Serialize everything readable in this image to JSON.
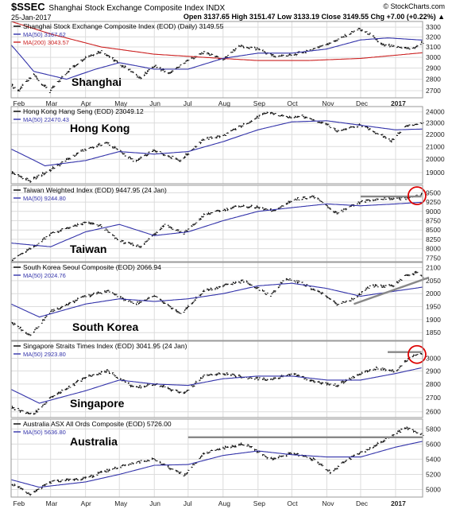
{
  "header": {
    "symbol": "$SSEC",
    "symbol_title": "Shanghai Stock Exchange Composite Index  INDX",
    "site": "© StockCharts.com",
    "date": "25-Jan-2017",
    "quote": "Open 3137.65  High 3151.47  Low 3133.19  Close 3149.55  Chg +7.00 (+0.22%) ▲"
  },
  "colors": {
    "price": "#000000",
    "ma50": "#3333aa",
    "ma200": "#cc2222",
    "resistance": "#888888",
    "highlight_circle": "#dd0000",
    "grid": "#dcdcdc",
    "panel_border": "#9a9a9a"
  },
  "x_axis": {
    "tick_labels": [
      "Feb",
      "Mar",
      "Apr",
      "May",
      "Jun",
      "Jul",
      "Aug",
      "Sep",
      "Oct",
      "Nov",
      "Dec",
      "2017"
    ],
    "tick_dates": [
      "2016-02-01",
      "2016-03-01",
      "2016-04-01",
      "2016-05-01",
      "2016-06-01",
      "2016-07-01",
      "2016-08-01",
      "2016-09-01",
      "2016-10-01",
      "2016-11-01",
      "2016-12-01",
      "2017-01-01"
    ],
    "start_date": "2016-01-26",
    "end_date": "2017-01-25"
  },
  "chart_data": [
    {
      "type": "line",
      "name": "Shanghai",
      "legend": [
        "Shanghai Stock Exchange Composite Index (EOD) (Daily) 3149.55",
        "MA(50) 3167.62",
        "MA(200) 3043.57"
      ],
      "ylim": [
        2640,
        3360
      ],
      "yticks": [
        2700,
        2800,
        2900,
        3000,
        3100,
        3200,
        3300
      ],
      "log": true,
      "price": [
        [
          "2016-01-26",
          2750
        ],
        [
          "2016-02-01",
          2700
        ],
        [
          "2016-02-15",
          2840
        ],
        [
          "2016-02-29",
          2690
        ],
        [
          "2016-03-15",
          2860
        ],
        [
          "2016-04-01",
          3000
        ],
        [
          "2016-04-15",
          3060
        ],
        [
          "2016-05-01",
          2940
        ],
        [
          "2016-05-20",
          2810
        ],
        [
          "2016-06-01",
          2920
        ],
        [
          "2016-06-15",
          2850
        ],
        [
          "2016-07-01",
          2970
        ],
        [
          "2016-07-15",
          3050
        ],
        [
          "2016-08-01",
          2980
        ],
        [
          "2016-08-15",
          3110
        ],
        [
          "2016-09-01",
          3080
        ],
        [
          "2016-09-15",
          3010
        ],
        [
          "2016-10-01",
          3020
        ],
        [
          "2016-10-20",
          3080
        ],
        [
          "2016-11-10",
          3170
        ],
        [
          "2016-11-29",
          3280
        ],
        [
          "2016-12-10",
          3220
        ],
        [
          "2016-12-20",
          3120
        ],
        [
          "2017-01-01",
          3100
        ],
        [
          "2017-01-16",
          3080
        ],
        [
          "2017-01-25",
          3150
        ]
      ],
      "ma50": [
        [
          "2016-01-26",
          3120
        ],
        [
          "2016-02-15",
          2870
        ],
        [
          "2016-03-15",
          2800
        ],
        [
          "2016-04-10",
          2890
        ],
        [
          "2016-05-01",
          2950
        ],
        [
          "2016-06-01",
          2890
        ],
        [
          "2016-07-01",
          2890
        ],
        [
          "2016-08-01",
          2990
        ],
        [
          "2016-09-01",
          3040
        ],
        [
          "2016-10-01",
          3040
        ],
        [
          "2016-11-01",
          3080
        ],
        [
          "2016-12-01",
          3170
        ],
        [
          "2016-12-25",
          3190
        ],
        [
          "2017-01-25",
          3168
        ]
      ],
      "ma200": [
        [
          "2016-01-26",
          3360
        ],
        [
          "2016-03-01",
          3230
        ],
        [
          "2016-04-15",
          3100
        ],
        [
          "2016-06-01",
          3030
        ],
        [
          "2016-07-15",
          3000
        ],
        [
          "2016-09-01",
          2970
        ],
        [
          "2016-10-15",
          2970
        ],
        [
          "2016-12-01",
          2990
        ],
        [
          "2017-01-25",
          3044
        ]
      ],
      "annotation": "Shanghai"
    },
    {
      "type": "line",
      "name": "Hong Kong",
      "legend": [
        "Hong Kong Hang Seng (EOD) 23049.12",
        "MA(50) 22470.43"
      ],
      "ylim": [
        18200,
        24500
      ],
      "yticks": [
        19000,
        20000,
        21000,
        22000,
        23000,
        24000
      ],
      "log": true,
      "price": [
        [
          "2016-01-26",
          19000
        ],
        [
          "2016-02-12",
          18400
        ],
        [
          "2016-03-01",
          19200
        ],
        [
          "2016-04-01",
          20800
        ],
        [
          "2016-04-20",
          21300
        ],
        [
          "2016-05-15",
          19800
        ],
        [
          "2016-06-01",
          20700
        ],
        [
          "2016-06-24",
          19900
        ],
        [
          "2016-07-15",
          21600
        ],
        [
          "2016-08-01",
          21900
        ],
        [
          "2016-08-20",
          22900
        ],
        [
          "2016-09-10",
          24000
        ],
        [
          "2016-09-25",
          23500
        ],
        [
          "2016-10-10",
          23600
        ],
        [
          "2016-10-31",
          22900
        ],
        [
          "2016-11-10",
          22300
        ],
        [
          "2016-12-01",
          22800
        ],
        [
          "2016-12-28",
          21500
        ],
        [
          "2017-01-10",
          22700
        ],
        [
          "2017-01-25",
          23049
        ]
      ],
      "ma50": [
        [
          "2016-01-26",
          20800
        ],
        [
          "2016-02-25",
          19500
        ],
        [
          "2016-04-01",
          19900
        ],
        [
          "2016-05-01",
          20600
        ],
        [
          "2016-06-01",
          20400
        ],
        [
          "2016-07-01",
          20600
        ],
        [
          "2016-08-01",
          21400
        ],
        [
          "2016-09-01",
          22400
        ],
        [
          "2016-10-01",
          23100
        ],
        [
          "2016-11-01",
          23200
        ],
        [
          "2016-12-01",
          22800
        ],
        [
          "2017-01-01",
          22400
        ],
        [
          "2017-01-25",
          22470
        ]
      ],
      "annotation": "Hong Kong"
    },
    {
      "type": "line",
      "name": "Taiwan",
      "legend": [
        "Taiwan Weighted Index (EOD) 9447.95 (24 Jan)",
        "MA(50) 9244.80"
      ],
      "ylim": [
        7650,
        9700
      ],
      "yticks": [
        7750,
        8000,
        8250,
        8500,
        8750,
        9000,
        9250,
        9500
      ],
      "log": false,
      "price": [
        [
          "2016-01-26",
          7700
        ],
        [
          "2016-02-15",
          8050
        ],
        [
          "2016-03-01",
          8400
        ],
        [
          "2016-04-01",
          8700
        ],
        [
          "2016-04-15",
          8600
        ],
        [
          "2016-05-01",
          8200
        ],
        [
          "2016-05-20",
          8050
        ],
        [
          "2016-06-10",
          8650
        ],
        [
          "2016-06-27",
          8400
        ],
        [
          "2016-07-15",
          8900
        ],
        [
          "2016-08-15",
          9150
        ],
        [
          "2016-09-01",
          9100
        ],
        [
          "2016-09-15",
          9000
        ],
        [
          "2016-10-01",
          9300
        ],
        [
          "2016-10-20",
          9400
        ],
        [
          "2016-11-10",
          8950
        ],
        [
          "2016-12-01",
          9250
        ],
        [
          "2016-12-20",
          9350
        ],
        [
          "2017-01-10",
          9350
        ],
        [
          "2017-01-24",
          9448
        ]
      ],
      "ma50": [
        [
          "2016-01-26",
          8150
        ],
        [
          "2016-03-01",
          8050
        ],
        [
          "2016-04-01",
          8450
        ],
        [
          "2016-05-01",
          8650
        ],
        [
          "2016-06-01",
          8350
        ],
        [
          "2016-07-01",
          8450
        ],
        [
          "2016-08-01",
          8750
        ],
        [
          "2016-09-01",
          9000
        ],
        [
          "2016-10-01",
          9100
        ],
        [
          "2016-11-01",
          9200
        ],
        [
          "2016-12-01",
          9150
        ],
        [
          "2017-01-01",
          9200
        ],
        [
          "2017-01-24",
          9245
        ]
      ],
      "resistance": [
        [
          "2016-12-01",
          9400
        ],
        [
          "2017-01-24",
          9400
        ]
      ],
      "highlight": [
        "2017-01-20",
        9420
      ],
      "annotation": "Taiwan"
    },
    {
      "type": "line",
      "name": "South Korea",
      "legend": [
        "South Korea Seoul Composite (EOD) 2066.94",
        "MA(50) 2024.76"
      ],
      "ylim": [
        1820,
        2120
      ],
      "yticks": [
        1850,
        1900,
        1950,
        2000,
        2050,
        2100
      ],
      "log": false,
      "price": [
        [
          "2016-01-26",
          1890
        ],
        [
          "2016-02-12",
          1840
        ],
        [
          "2016-03-01",
          1930
        ],
        [
          "2016-04-01",
          1990
        ],
        [
          "2016-04-20",
          2010
        ],
        [
          "2016-05-15",
          1960
        ],
        [
          "2016-06-01",
          1990
        ],
        [
          "2016-06-24",
          1920
        ],
        [
          "2016-07-15",
          2010
        ],
        [
          "2016-08-01",
          2030
        ],
        [
          "2016-08-20",
          2050
        ],
        [
          "2016-09-12",
          1990
        ],
        [
          "2016-09-25",
          2060
        ],
        [
          "2016-10-10",
          2040
        ],
        [
          "2016-11-01",
          1990
        ],
        [
          "2016-11-10",
          1960
        ],
        [
          "2016-11-25",
          1980
        ],
        [
          "2016-12-10",
          2030
        ],
        [
          "2016-12-30",
          2030
        ],
        [
          "2017-01-10",
          2070
        ],
        [
          "2017-01-20",
          2080
        ],
        [
          "2017-01-25",
          2067
        ]
      ],
      "ma50": [
        [
          "2016-01-26",
          1960
        ],
        [
          "2016-02-20",
          1910
        ],
        [
          "2016-04-01",
          1960
        ],
        [
          "2016-05-01",
          1980
        ],
        [
          "2016-06-01",
          1970
        ],
        [
          "2016-07-01",
          1980
        ],
        [
          "2016-08-01",
          2000
        ],
        [
          "2016-09-01",
          2030
        ],
        [
          "2016-10-01",
          2040
        ],
        [
          "2016-11-01",
          2020
        ],
        [
          "2016-12-01",
          1990
        ],
        [
          "2017-01-01",
          2010
        ],
        [
          "2017-01-25",
          2025
        ]
      ],
      "trendline": [
        [
          "2016-11-25",
          1960
        ],
        [
          "2017-01-25",
          2050
        ]
      ],
      "annotation": "South Korea"
    },
    {
      "type": "line",
      "name": "Singapore",
      "legend": [
        "Singapore Straits Times Index (EOD) 3041.95 (24 Jan)",
        "MA(50) 2923.80"
      ],
      "ylim": [
        2560,
        3140
      ],
      "yticks": [
        2600,
        2700,
        2800,
        2900,
        3000
      ],
      "log": true,
      "price": [
        [
          "2016-01-26",
          2630
        ],
        [
          "2016-02-15",
          2580
        ],
        [
          "2016-03-01",
          2700
        ],
        [
          "2016-04-01",
          2850
        ],
        [
          "2016-04-20",
          2900
        ],
        [
          "2016-05-15",
          2770
        ],
        [
          "2016-06-01",
          2800
        ],
        [
          "2016-06-27",
          2730
        ],
        [
          "2016-07-15",
          2860
        ],
        [
          "2016-08-01",
          2880
        ],
        [
          "2016-08-20",
          2850
        ],
        [
          "2016-09-12",
          2830
        ],
        [
          "2016-10-01",
          2880
        ],
        [
          "2016-10-20",
          2820
        ],
        [
          "2016-11-10",
          2790
        ],
        [
          "2016-12-01",
          2880
        ],
        [
          "2016-12-15",
          2920
        ],
        [
          "2017-01-01",
          2900
        ],
        [
          "2017-01-15",
          3020
        ],
        [
          "2017-01-24",
          3042
        ]
      ],
      "ma50": [
        [
          "2016-01-26",
          2760
        ],
        [
          "2016-02-20",
          2660
        ],
        [
          "2016-04-01",
          2750
        ],
        [
          "2016-05-01",
          2830
        ],
        [
          "2016-06-01",
          2800
        ],
        [
          "2016-07-01",
          2790
        ],
        [
          "2016-08-01",
          2840
        ],
        [
          "2016-09-01",
          2860
        ],
        [
          "2016-10-01",
          2860
        ],
        [
          "2016-11-01",
          2830
        ],
        [
          "2016-12-01",
          2830
        ],
        [
          "2017-01-01",
          2880
        ],
        [
          "2017-01-24",
          2924
        ]
      ],
      "resistance": [
        [
          "2016-12-25",
          3050
        ],
        [
          "2017-01-24",
          3050
        ]
      ],
      "highlight": [
        "2017-01-20",
        3030
      ],
      "annotation": "Singapore"
    },
    {
      "type": "line",
      "name": "Australia",
      "legend": [
        "Australia ASX All Ords Composite (EOD) 5726.00",
        "MA(50) 5636.80"
      ],
      "ylim": [
        4900,
        5930
      ],
      "yticks": [
        5000,
        5200,
        5400,
        5600,
        5800
      ],
      "log": false,
      "price": [
        [
          "2016-01-26",
          5080
        ],
        [
          "2016-02-12",
          4930
        ],
        [
          "2016-03-01",
          5100
        ],
        [
          "2016-04-01",
          5150
        ],
        [
          "2016-04-20",
          5250
        ],
        [
          "2016-05-15",
          5360
        ],
        [
          "2016-06-01",
          5400
        ],
        [
          "2016-06-27",
          5180
        ],
        [
          "2016-07-15",
          5480
        ],
        [
          "2016-08-01",
          5550
        ],
        [
          "2016-08-20",
          5600
        ],
        [
          "2016-09-12",
          5400
        ],
        [
          "2016-10-01",
          5480
        ],
        [
          "2016-10-20",
          5400
        ],
        [
          "2016-11-04",
          5230
        ],
        [
          "2016-11-20",
          5400
        ],
        [
          "2016-12-10",
          5550
        ],
        [
          "2017-01-01",
          5740
        ],
        [
          "2017-01-10",
          5820
        ],
        [
          "2017-01-25",
          5726
        ]
      ],
      "ma50": [
        [
          "2016-01-26",
          5130
        ],
        [
          "2016-02-20",
          5030
        ],
        [
          "2016-04-01",
          5100
        ],
        [
          "2016-05-01",
          5200
        ],
        [
          "2016-06-01",
          5320
        ],
        [
          "2016-07-01",
          5330
        ],
        [
          "2016-08-01",
          5450
        ],
        [
          "2016-09-01",
          5510
        ],
        [
          "2016-10-01",
          5460
        ],
        [
          "2016-11-01",
          5430
        ],
        [
          "2016-12-01",
          5430
        ],
        [
          "2017-01-01",
          5560
        ],
        [
          "2017-01-25",
          5637
        ]
      ],
      "resistance": [
        [
          "2016-07-01",
          5690
        ],
        [
          "2017-01-25",
          5690
        ]
      ],
      "annotation": "Australia"
    }
  ]
}
